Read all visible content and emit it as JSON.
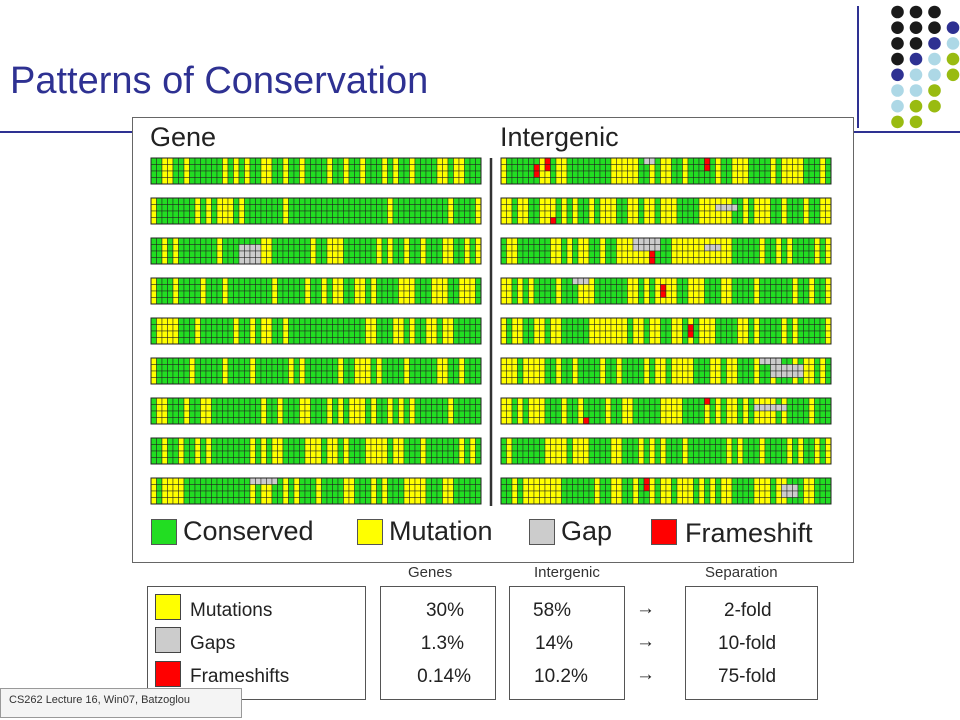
{
  "slide": {
    "title": "Patterns of Conservation",
    "footer": "CS262 Lecture 16, Win07, Batzoglou"
  },
  "figure": {
    "left_header": "Gene",
    "right_header": "Intergenic",
    "legend": [
      {
        "label": "Conserved",
        "color": "#22dd22"
      },
      {
        "label": "Mutation",
        "color": "#ffff00"
      },
      {
        "label": "Gap",
        "color": "#cccccc"
      },
      {
        "label": "Frameshift",
        "color": "#ff0000"
      }
    ]
  },
  "table": {
    "column_headers": [
      "Genes",
      "Intergenic",
      "Separation"
    ],
    "rows": [
      {
        "label": "Mutations",
        "swatch": "#ffff00",
        "genes": "30%",
        "intergenic": "58%",
        "separation": "2-fold"
      },
      {
        "label": "Gaps",
        "swatch": "#cccccc",
        "genes": "1.3%",
        "intergenic": "14%",
        "separation": "10-fold"
      },
      {
        "label": "Frameshifts",
        "swatch": "#ff0000",
        "genes": "0.14%",
        "intergenic": "10.2%",
        "separation": "75-fold"
      }
    ],
    "arrow_symbol": "→"
  },
  "colors": {
    "title": "#2e3192",
    "dot_palette": [
      "#1a1a1a",
      "#2e3192",
      "#add8e6",
      "#99bb11"
    ]
  }
}
